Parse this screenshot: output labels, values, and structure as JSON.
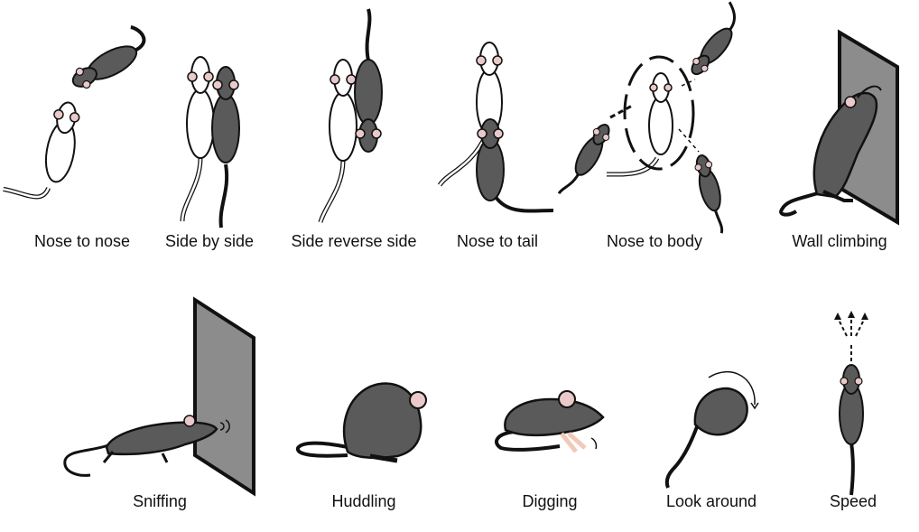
{
  "figure": {
    "row1": [
      {
        "id": "nose-to-nose",
        "label": "Nose to nose",
        "icon": "nose-to-nose-icon"
      },
      {
        "id": "side-by-side",
        "label": "Side by side",
        "icon": "side-by-side-icon"
      },
      {
        "id": "side-reverse-side",
        "label": "Side reverse side",
        "icon": "side-reverse-side-icon"
      },
      {
        "id": "nose-to-tail",
        "label": "Nose to tail",
        "icon": "nose-to-tail-icon"
      },
      {
        "id": "nose-to-body",
        "label": "Nose to body",
        "icon": "nose-to-body-icon"
      },
      {
        "id": "wall-climbing",
        "label": "Wall climbing",
        "icon": "wall-climbing-icon"
      }
    ],
    "row2": [
      {
        "id": "sniffing",
        "label": "Sniffing",
        "icon": "sniffing-icon"
      },
      {
        "id": "huddling",
        "label": "Huddling",
        "icon": "huddling-icon"
      },
      {
        "id": "digging",
        "label": "Digging",
        "icon": "digging-icon"
      },
      {
        "id": "look-around",
        "label": "Look around",
        "icon": "look-around-icon"
      },
      {
        "id": "speed",
        "label": "Speed",
        "icon": "speed-icon"
      }
    ]
  },
  "colors": {
    "mouse_dark": "#5a5a5a",
    "mouse_white": "#ffffff",
    "outline": "#111111",
    "ear_pink": "#e9c9c9",
    "wall": "#8c8c8c",
    "paw_pink": "#f2c9b8"
  }
}
